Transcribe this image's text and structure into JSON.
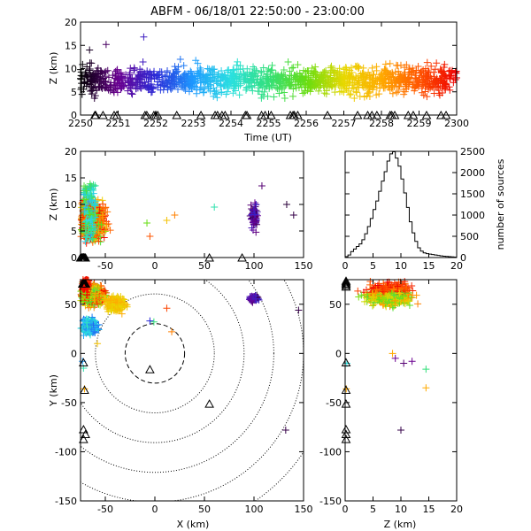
{
  "title": "ABFM - 06/18/01 22:50:00 - 23:00:00",
  "colors": {
    "time_gradient": [
      "#000000",
      "#6a0090",
      "#2a2ad8",
      "#1e9bff",
      "#2ae0e0",
      "#33e07a",
      "#66dd11",
      "#e8d800",
      "#ffaa00",
      "#ff5500",
      "#ee0000"
    ],
    "sensor_marker": "#000000",
    "histogram_line": "#000000",
    "range_rings": "#000000"
  },
  "panels": {
    "time_height": {
      "ylabel": "Z (km)",
      "xlabel": "Time (UT)"
    },
    "xz": {
      "ylabel": "Z (km)"
    },
    "histogram": {
      "ylabel": "number of sources"
    },
    "xy": {
      "xlabel": "X (km)",
      "ylabel": "Y (km)"
    },
    "zy": {
      "xlabel": "Z (km)"
    }
  },
  "chart_data": [
    {
      "type": "scatter",
      "panel": "time_height",
      "xlabel": "Time (UT)",
      "ylabel": "Z (km)",
      "xlim": [
        2250,
        2300
      ],
      "ylim": [
        0,
        20
      ],
      "x_ticks": [
        "2250",
        "2251",
        "2252",
        "2253",
        "2254",
        "2255",
        "2256",
        "2257",
        "2258",
        "2259",
        "2300"
      ],
      "y_ticks": [
        "0",
        "5",
        "10",
        "15",
        "20"
      ],
      "marker": "+",
      "color_by": "time",
      "source_height_band_km": [
        1,
        13
      ],
      "sensor_markers": "triangles along z=0"
    },
    {
      "type": "scatter",
      "panel": "xz",
      "ylabel": "Z (km)",
      "xlim": [
        -75,
        150
      ],
      "ylim": [
        0,
        20
      ],
      "x_ticks": [
        "-50",
        "0",
        "50",
        "100",
        "150"
      ],
      "y_ticks": [
        "0",
        "5",
        "10",
        "15",
        "20"
      ],
      "marker": "+",
      "color_by": "time",
      "clusters": [
        {
          "x_range_km": [
            -75,
            -25
          ],
          "z_range_km": [
            0,
            15
          ]
        },
        {
          "x_range_km": [
            90,
            110
          ],
          "z_range_km": [
            4,
            12
          ]
        }
      ],
      "sensors_x_km": [
        -75,
        -72,
        55,
        88
      ]
    },
    {
      "type": "line",
      "panel": "histogram",
      "ylabel": "number of sources",
      "xlim": [
        0,
        20
      ],
      "ylim": [
        0,
        2500
      ],
      "x_ticks": [
        "0",
        "5",
        "10",
        "15",
        "20"
      ],
      "y_ticks": [
        "0",
        "500",
        "1000",
        "1500",
        "2000",
        "2500"
      ],
      "step": true,
      "x": [
        0.0,
        0.5,
        1.0,
        1.5,
        2.0,
        2.5,
        3.0,
        3.5,
        4.0,
        4.5,
        5.0,
        5.5,
        6.0,
        6.5,
        7.0,
        7.5,
        8.0,
        8.5,
        9.0,
        9.5,
        10.0,
        10.5,
        11.0,
        11.5,
        12.0,
        12.5,
        13.0,
        13.5,
        14.0,
        14.5,
        15.0,
        15.5,
        16.0,
        16.5,
        17.0,
        17.5,
        18.0,
        18.5,
        19.0,
        19.5,
        20.0
      ],
      "y": [
        20,
        60,
        140,
        200,
        260,
        320,
        420,
        560,
        730,
        920,
        1130,
        1330,
        1560,
        1800,
        2020,
        2270,
        2440,
        2490,
        2340,
        2150,
        1850,
        1520,
        1180,
        840,
        580,
        380,
        230,
        150,
        110,
        90,
        80,
        70,
        60,
        50,
        40,
        30,
        25,
        20,
        15,
        10,
        5
      ]
    },
    {
      "type": "scatter",
      "panel": "xy",
      "xlabel": "X (km)",
      "ylabel": "Y (km)",
      "xlim": [
        -75,
        150
      ],
      "ylim": [
        -150,
        75
      ],
      "x_ticks": [
        "-50",
        "0",
        "50",
        "100",
        "150"
      ],
      "y_ticks": [
        "-150",
        "-100",
        "-50",
        "0",
        "50"
      ],
      "marker": "+",
      "color_by": "time",
      "range_rings_km": [
        30,
        60,
        90,
        120,
        150,
        180
      ],
      "inner_ring_style": "dashed",
      "clusters": [
        {
          "x_range_km": [
            -75,
            -20
          ],
          "y_range_km": [
            10,
            75
          ]
        },
        {
          "x_range_km": [
            90,
            110
          ],
          "y_range_km": [
            50,
            62
          ]
        }
      ],
      "sensors_xy_km": [
        [
          -5,
          -17
        ],
        [
          55,
          -52
        ],
        [
          -72,
          -78
        ],
        [
          -70,
          -83
        ],
        [
          -72,
          -88
        ],
        [
          -72,
          -10
        ],
        [
          -71,
          -38
        ]
      ]
    },
    {
      "type": "scatter",
      "panel": "zy",
      "xlabel": "Z (km)",
      "xlim": [
        0,
        20
      ],
      "ylim": [
        -150,
        75
      ],
      "x_ticks": [
        "0",
        "5",
        "10",
        "15",
        "20"
      ],
      "y_ticks": [
        "-150",
        "-100",
        "-50",
        "0",
        "50"
      ],
      "marker": "+",
      "color_by": "time",
      "sensors_zy_km": [
        [
          0,
          -10
        ],
        [
          0,
          -38
        ],
        [
          0,
          -52
        ],
        [
          0,
          -78
        ],
        [
          0,
          -83
        ],
        [
          0,
          -88
        ]
      ]
    }
  ]
}
